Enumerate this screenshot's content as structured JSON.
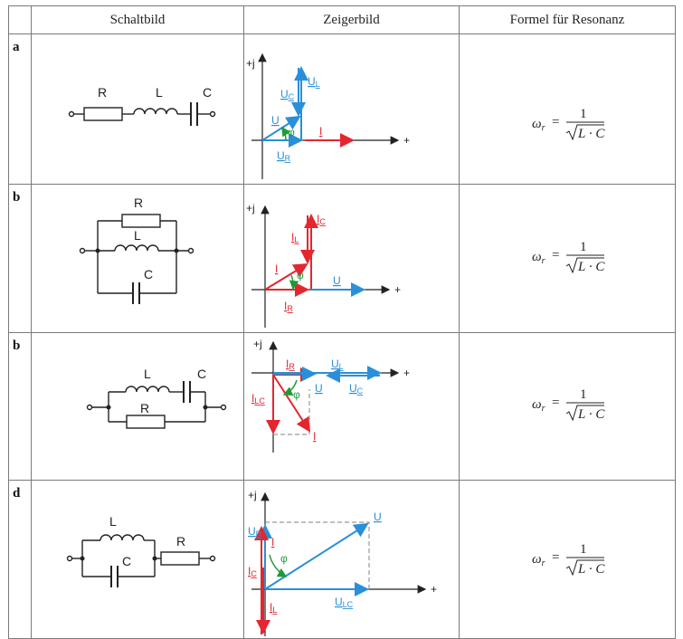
{
  "table": {
    "headers": [
      "Schaltbild",
      "Zeigerbild",
      "Formel für Resonanz"
    ]
  },
  "rows": [
    {
      "index": "a",
      "schematic": {
        "r": "R",
        "l": "L",
        "c": "C"
      },
      "phasor": {
        "axis_j": "+j",
        "axis_plus": "+",
        "ul": "U",
        "ul_sub": "L",
        "uc": "U",
        "uc_sub": "C",
        "u": "U",
        "i": "I",
        "ur": "U",
        "ur_sub": "R",
        "phi": "φ"
      },
      "formula": {
        "lhs": "ω",
        "lhs_sub": "r",
        "eq": "=",
        "num": "1",
        "den": "L · C"
      }
    },
    {
      "index": "b",
      "schematic": {
        "r": "R",
        "l": "L",
        "c": "C"
      },
      "phasor": {
        "axis_j": "+j",
        "axis_plus": "+",
        "ic": "I",
        "ic_sub": "C",
        "il": "I",
        "il_sub": "L",
        "i": "I",
        "u": "U",
        "ir": "I",
        "ir_sub": "R",
        "phi": "φ"
      },
      "formula": {
        "lhs": "ω",
        "lhs_sub": "r",
        "eq": "=",
        "num": "1",
        "den": "L · C"
      }
    },
    {
      "index": "b",
      "schematic": {
        "r": "R",
        "l": "L",
        "c": "C"
      },
      "phasor": {
        "axis_j": "+j",
        "axis_plus": "+",
        "ir": "I",
        "ir_sub": "R",
        "ul": "U",
        "ul_sub": "L",
        "u": "U",
        "uc": "U",
        "uc_sub": "C",
        "ilc": "I",
        "ilc_sub": "LC",
        "i": "I",
        "phi": "φ"
      },
      "formula": {
        "lhs": "ω",
        "lhs_sub": "r",
        "eq": "=",
        "num": "1",
        "den": "L · C"
      }
    },
    {
      "index": "d",
      "schematic": {
        "r": "R",
        "l": "L",
        "c": "C"
      },
      "phasor": {
        "axis_j": "+j",
        "axis_plus": "+",
        "ur": "U",
        "ur_sub": "R",
        "i": "I",
        "u": "U",
        "ic": "I",
        "ic_sub": "C",
        "ulc": "U",
        "ulc_sub": "LC",
        "il": "I",
        "il_sub": "L",
        "phi": "φ"
      },
      "formula": {
        "lhs": "ω",
        "lhs_sub": "r",
        "eq": "=",
        "num": "1",
        "den": "L · C"
      }
    }
  ],
  "colors": {
    "voltage": "#2a8fd8",
    "current": "#e4262f",
    "angle": "#1f9a3a",
    "line": "#222222",
    "dashed": "#999999"
  }
}
